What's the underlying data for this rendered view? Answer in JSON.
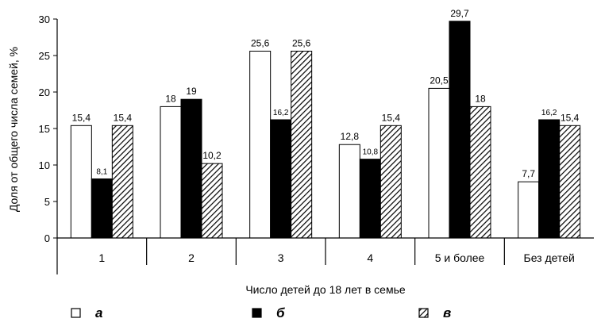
{
  "chart_data": {
    "type": "bar",
    "ylabel": "Доля от общего числа семей, %",
    "xlabel": "Число детей до 18 лет в семье",
    "ylim": [
      0,
      30
    ],
    "yticks": [
      "0",
      "5",
      "10",
      "15",
      "20",
      "25",
      "30"
    ],
    "grid": false,
    "legend_position": "bottom",
    "categories": [
      "1",
      "2",
      "3",
      "4",
      "5 и более",
      "Без детей"
    ],
    "series": [
      {
        "name": "а",
        "style": "white",
        "values": [
          15.4,
          18,
          25.6,
          12.8,
          20.5,
          7.7
        ],
        "labels": [
          "15,4",
          "18",
          "25,6",
          "12,8",
          "20,5",
          "7,7"
        ]
      },
      {
        "name": "б",
        "style": "black",
        "values": [
          8.1,
          19,
          16.2,
          10.8,
          29.7,
          16.2
        ],
        "labels": [
          "8,1",
          "19",
          "16,2",
          "10,8",
          "29,7",
          "16,2"
        ]
      },
      {
        "name": "в",
        "style": "hatched",
        "values": [
          15.4,
          10.2,
          25.6,
          15.4,
          18,
          15.4
        ],
        "labels": [
          "15,4",
          "10,2",
          "25,6",
          "15,4",
          "18",
          "15,4"
        ]
      }
    ]
  }
}
